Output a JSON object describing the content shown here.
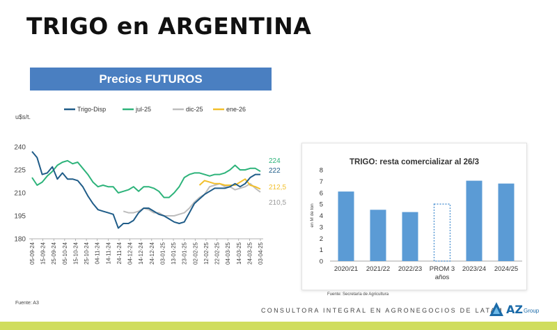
{
  "page": {
    "title": "TRIGO en ARGENTINA",
    "banner": "Precios FUTUROS",
    "source_left": "Fuente: A3",
    "source_right": "Fuente: Secretaría de Agricultura",
    "tagline": "CONSULTORA INTEGRAL EN AGRONEGOCIOS DE LATAM",
    "logo_mark": "AZ",
    "logo_sub": "Group",
    "band_color": "#d0dd5e"
  },
  "chart_data": [
    {
      "type": "line",
      "ylabel": "u$s/t.",
      "ylim": [
        180,
        240
      ],
      "yticks": [
        180,
        195,
        210,
        225,
        240
      ],
      "x_ticks": [
        "05-09-24",
        "15-09-24",
        "25-09-24",
        "05-10-24",
        "15-10-24",
        "25-10-24",
        "04-11-24",
        "14-11-24",
        "24-11-24",
        "04-12-24",
        "14-12-24",
        "24-12-24",
        "03-01-25",
        "13-01-25",
        "23-01-25",
        "02-02-25",
        "12-02-25",
        "22-02-25",
        "04-03-25",
        "14-03-25",
        "24-03-25",
        "03-04-25"
      ],
      "legend_position": "top",
      "grid": false,
      "series": [
        {
          "name": "Trigo-Disp",
          "color": "#1f5c88",
          "end_label": "222",
          "points": [
            [
              0,
              237
            ],
            [
              1,
              233
            ],
            [
              2,
              222
            ],
            [
              3,
              223
            ],
            [
              4,
              227
            ],
            [
              5,
              219
            ],
            [
              6,
              223
            ],
            [
              7,
              219
            ],
            [
              8,
              219
            ],
            [
              9,
              218
            ],
            [
              10,
              214
            ],
            [
              11,
              208
            ],
            [
              12,
              203
            ],
            [
              13,
              199
            ],
            [
              14,
              198
            ],
            [
              15,
              197
            ],
            [
              16,
              196
            ],
            [
              17,
              187
            ],
            [
              18,
              190
            ],
            [
              19,
              190
            ],
            [
              20,
              192
            ],
            [
              21,
              197
            ],
            [
              22,
              200
            ],
            [
              23,
              200
            ],
            [
              24,
              198
            ],
            [
              25,
              196
            ],
            [
              26,
              195
            ],
            [
              27,
              193
            ],
            [
              28,
              191
            ],
            [
              29,
              190
            ],
            [
              30,
              191
            ],
            [
              31,
              197
            ],
            [
              32,
              203
            ],
            [
              33,
              206
            ],
            [
              34,
              209
            ],
            [
              35,
              211
            ],
            [
              36,
              213
            ],
            [
              37,
              213
            ],
            [
              38,
              213
            ],
            [
              39,
              214
            ],
            [
              40,
              216
            ],
            [
              41,
              214
            ],
            [
              42,
              216
            ],
            [
              43,
              220
            ],
            [
              44,
              222
            ],
            [
              45,
              222
            ]
          ]
        },
        {
          "name": "jul-25",
          "color": "#2db37a",
          "end_label": "224",
          "points": [
            [
              0,
              220
            ],
            [
              1,
              215
            ],
            [
              2,
              217
            ],
            [
              3,
              221
            ],
            [
              4,
              224
            ],
            [
              5,
              228
            ],
            [
              6,
              230
            ],
            [
              7,
              231
            ],
            [
              8,
              229
            ],
            [
              9,
              230
            ],
            [
              10,
              226
            ],
            [
              11,
              222
            ],
            [
              12,
              217
            ],
            [
              13,
              214
            ],
            [
              14,
              215
            ],
            [
              15,
              214
            ],
            [
              16,
              214
            ],
            [
              17,
              210
            ],
            [
              18,
              211
            ],
            [
              19,
              212
            ],
            [
              20,
              214
            ],
            [
              21,
              211
            ],
            [
              22,
              214
            ],
            [
              23,
              214
            ],
            [
              24,
              213
            ],
            [
              25,
              211
            ],
            [
              26,
              207
            ],
            [
              27,
              207
            ],
            [
              28,
              210
            ],
            [
              29,
              214
            ],
            [
              30,
              220
            ],
            [
              31,
              222
            ],
            [
              32,
              223
            ],
            [
              33,
              223
            ],
            [
              34,
              222
            ],
            [
              35,
              221
            ],
            [
              36,
              222
            ],
            [
              37,
              222
            ],
            [
              38,
              223
            ],
            [
              39,
              225
            ],
            [
              40,
              228
            ],
            [
              41,
              225
            ],
            [
              42,
              225
            ],
            [
              43,
              226
            ],
            [
              44,
              226
            ],
            [
              45,
              224
            ]
          ]
        },
        {
          "name": "dic-25",
          "color": "#bdbdbd",
          "end_label": "210,5",
          "points": [
            [
              18,
              198
            ],
            [
              19,
              197
            ],
            [
              20,
              197
            ],
            [
              21,
              198
            ],
            [
              22,
              200
            ],
            [
              23,
              199
            ],
            [
              24,
              197
            ],
            [
              25,
              197
            ],
            [
              26,
              195
            ],
            [
              27,
              195
            ],
            [
              28,
              195
            ],
            [
              29,
              196
            ],
            [
              30,
              197
            ],
            [
              31,
              200
            ],
            [
              32,
              204
            ],
            [
              33,
              207
            ],
            [
              34,
              209
            ],
            [
              35,
              214
            ],
            [
              36,
              215
            ],
            [
              37,
              216
            ],
            [
              38,
              214
            ],
            [
              39,
              214
            ],
            [
              40,
              212
            ],
            [
              41,
              213
            ],
            [
              42,
              214
            ],
            [
              43,
              216
            ],
            [
              44,
              213
            ],
            [
              45,
              210.5
            ]
          ]
        },
        {
          "name": "ene-26",
          "color": "#f2bf2a",
          "end_label": "212,5",
          "points": [
            [
              33,
              215
            ],
            [
              34,
              218
            ],
            [
              35,
              217
            ],
            [
              36,
              216
            ],
            [
              37,
              216
            ],
            [
              38,
              215
            ],
            [
              39,
              215
            ],
            [
              40,
              215
            ],
            [
              41,
              217
            ],
            [
              42,
              219
            ],
            [
              43,
              215
            ],
            [
              44,
              214
            ],
            [
              45,
              212.5
            ]
          ]
        }
      ]
    },
    {
      "type": "bar",
      "title": "TRIGO: resta comercializar al 26/3",
      "ylabel": "en M de ton",
      "ylim": [
        0,
        8
      ],
      "yticks": [
        0,
        1,
        2,
        3,
        4,
        5,
        6,
        7,
        8
      ],
      "categories": [
        "2020/21",
        "2021/22",
        "2022/23",
        "PROM 3 años",
        "2023/24",
        "2024/25"
      ],
      "values": [
        6.1,
        4.5,
        4.3,
        5.0,
        7.05,
        6.8
      ],
      "bar_color": "#5b9bd5",
      "dotted_categories": [
        "PROM 3 años"
      ]
    }
  ]
}
